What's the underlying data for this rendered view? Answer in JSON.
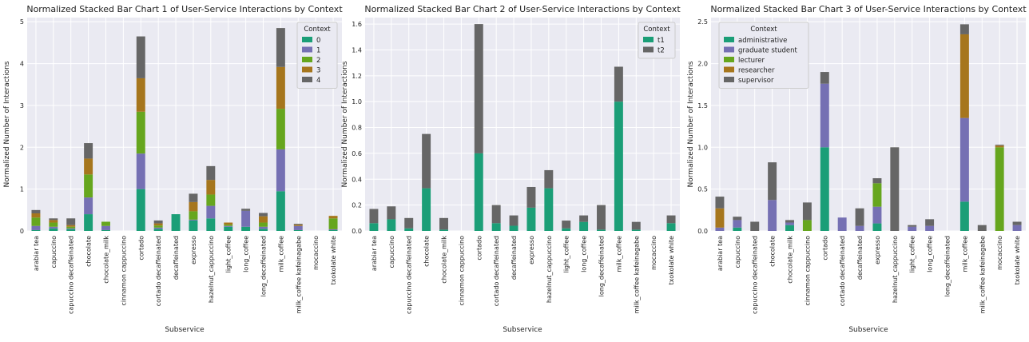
{
  "chart_data": [
    {
      "type": "bar",
      "stacked": true,
      "title": "Normalized Stacked Bar Chart 1 of User-Service Interactions by Context",
      "xlabel": "Subservice",
      "ylabel": "Normalized Number of Interactions",
      "ylim": [
        0,
        5.1
      ],
      "yticks": [
        "0",
        "1",
        "2",
        "3",
        "4",
        "5"
      ],
      "grid": true,
      "legend": {
        "title": "Context",
        "placement": "top-right"
      },
      "categories": [
        "arabiar tea",
        "capuccino",
        "capuccino decaffeinated",
        "chocolate",
        "chocolate_milk",
        "cinnamon cappuccino",
        "cortado",
        "cortado decaffeinated",
        "decaffeinated",
        "expresso",
        "hazelnut_cappuccino",
        "light_coffee",
        "long_coffee",
        "long_decaffeinated",
        "milk_coffee",
        "milk_coffee kafeinagabe",
        "mocaccino",
        "txokolate white"
      ],
      "series": [
        {
          "name": "0",
          "color": "#1b9e77",
          "values": [
            0.02,
            0.06,
            0.04,
            0.4,
            0.02,
            0,
            1.0,
            0.05,
            0.4,
            0.25,
            0.3,
            0.1,
            0.1,
            0.05,
            0.95,
            0.02,
            0,
            0.02
          ]
        },
        {
          "name": "1",
          "color": "#7570b3",
          "values": [
            0.1,
            0.04,
            0.02,
            0.4,
            0.1,
            0,
            0.85,
            0.03,
            0,
            0.02,
            0.3,
            0.02,
            0.38,
            0.05,
            1.0,
            0.1,
            0,
            0.02
          ]
        },
        {
          "name": "2",
          "color": "#66a61e",
          "values": [
            0.2,
            0.1,
            0.04,
            0.55,
            0.1,
            0,
            1.0,
            0.05,
            0,
            0.2,
            0.27,
            0.03,
            0,
            0.1,
            0.97,
            0,
            0,
            0.26
          ]
        },
        {
          "name": "3",
          "color": "#a6761d",
          "values": [
            0.1,
            0.06,
            0.04,
            0.38,
            0,
            0,
            0.8,
            0.05,
            0,
            0.22,
            0.35,
            0.05,
            0,
            0.15,
            1.0,
            0.03,
            0,
            0.06
          ]
        },
        {
          "name": "4",
          "color": "#666666",
          "values": [
            0.08,
            0.04,
            0.16,
            0.37,
            0,
            0,
            1.0,
            0.07,
            0,
            0.2,
            0.33,
            0,
            0.05,
            0.08,
            0.93,
            0.02,
            0,
            0
          ]
        }
      ]
    },
    {
      "type": "bar",
      "stacked": true,
      "title": "Normalized Stacked Bar Chart 2 of User-Service Interactions by Context",
      "xlabel": "Subservice",
      "ylabel": "Normalized Number of Interactions",
      "ylim": [
        0,
        1.65
      ],
      "yticks": [
        "0.0",
        "0.2",
        "0.4",
        "0.6",
        "0.8",
        "1.0",
        "1.2",
        "1.4",
        "1.6"
      ],
      "grid": true,
      "legend": {
        "title": "Context",
        "placement": "top-right"
      },
      "categories": [
        "arabiar tea",
        "capuccino",
        "capuccino decaffeinated",
        "chocolate",
        "chocolate_milk",
        "cinnamon cappuccino",
        "cortado",
        "cortado decaffeinated",
        "decaffeinated",
        "expresso",
        "hazelnut_cappuccino",
        "light_coffee",
        "long_coffee",
        "long_decaffeinated",
        "milk_coffee",
        "milk_coffee kafeinagabe",
        "mocaccino",
        "txokolate white"
      ],
      "series": [
        {
          "name": "t1",
          "color": "#1b9e77",
          "values": [
            0.06,
            0.09,
            0.02,
            0.33,
            0.01,
            0,
            0.6,
            0.06,
            0.04,
            0.18,
            0.33,
            0.02,
            0.07,
            0.01,
            1.0,
            0.01,
            0,
            0.06
          ]
        },
        {
          "name": "t2",
          "color": "#666666",
          "values": [
            0.11,
            0.1,
            0.08,
            0.42,
            0.09,
            0,
            1.0,
            0.14,
            0.08,
            0.16,
            0.14,
            0.06,
            0.05,
            0.19,
            0.27,
            0.06,
            0,
            0.06
          ]
        }
      ]
    },
    {
      "type": "bar",
      "stacked": true,
      "title": "Normalized Stacked Bar Chart 3 of User-Service Interactions by Context",
      "xlabel": "Subservice",
      "ylabel": "Normalized Number of Interactions",
      "ylim": [
        0,
        2.55
      ],
      "yticks": [
        "0.0",
        "0.5",
        "1.0",
        "1.5",
        "2.0",
        "2.5"
      ],
      "grid": true,
      "legend": {
        "title": "Context",
        "placement": "top-left"
      },
      "categories": [
        "arabiar tea",
        "capuccino",
        "capuccino decaffeinated",
        "chocolate",
        "chocolate_milk",
        "cinnamon cappuccino",
        "cortado",
        "cortado decaffeinated",
        "decaffeinated",
        "expresso",
        "hazelnut_cappuccino",
        "light_coffee",
        "long_coffee",
        "long_decaffeinated",
        "milk_coffee",
        "milk_coffee kafeinagabe",
        "mocaccino",
        "txokolate white"
      ],
      "series": [
        {
          "name": "administrative",
          "color": "#1b9e77",
          "values": [
            0,
            0.04,
            0,
            0,
            0.07,
            0,
            1.0,
            0,
            0,
            0.09,
            0,
            0,
            0,
            0,
            0.35,
            0,
            0,
            0
          ]
        },
        {
          "name": "graduate student",
          "color": "#7570b3",
          "values": [
            0.04,
            0.09,
            0,
            0.37,
            0.03,
            0,
            0.76,
            0.16,
            0.06,
            0.2,
            0,
            0.05,
            0.06,
            0,
            1.0,
            0,
            0,
            0.07
          ]
        },
        {
          "name": "lecturer",
          "color": "#66a61e",
          "values": [
            0,
            0,
            0,
            0,
            0,
            0.13,
            0,
            0,
            0,
            0.28,
            0,
            0,
            0,
            0,
            0,
            0,
            1.0,
            0
          ]
        },
        {
          "name": "researcher",
          "color": "#a6761d",
          "values": [
            0.23,
            0,
            0,
            0,
            0,
            0,
            0,
            0,
            0,
            0,
            0,
            0,
            0,
            0,
            1.0,
            0,
            0.02,
            0
          ]
        },
        {
          "name": "supervisor",
          "color": "#666666",
          "values": [
            0.14,
            0.04,
            0.11,
            0.45,
            0.03,
            0.21,
            0.14,
            0,
            0.21,
            0.06,
            1.0,
            0.02,
            0.08,
            0,
            0.12,
            0.07,
            0.01,
            0.04
          ]
        }
      ]
    }
  ]
}
